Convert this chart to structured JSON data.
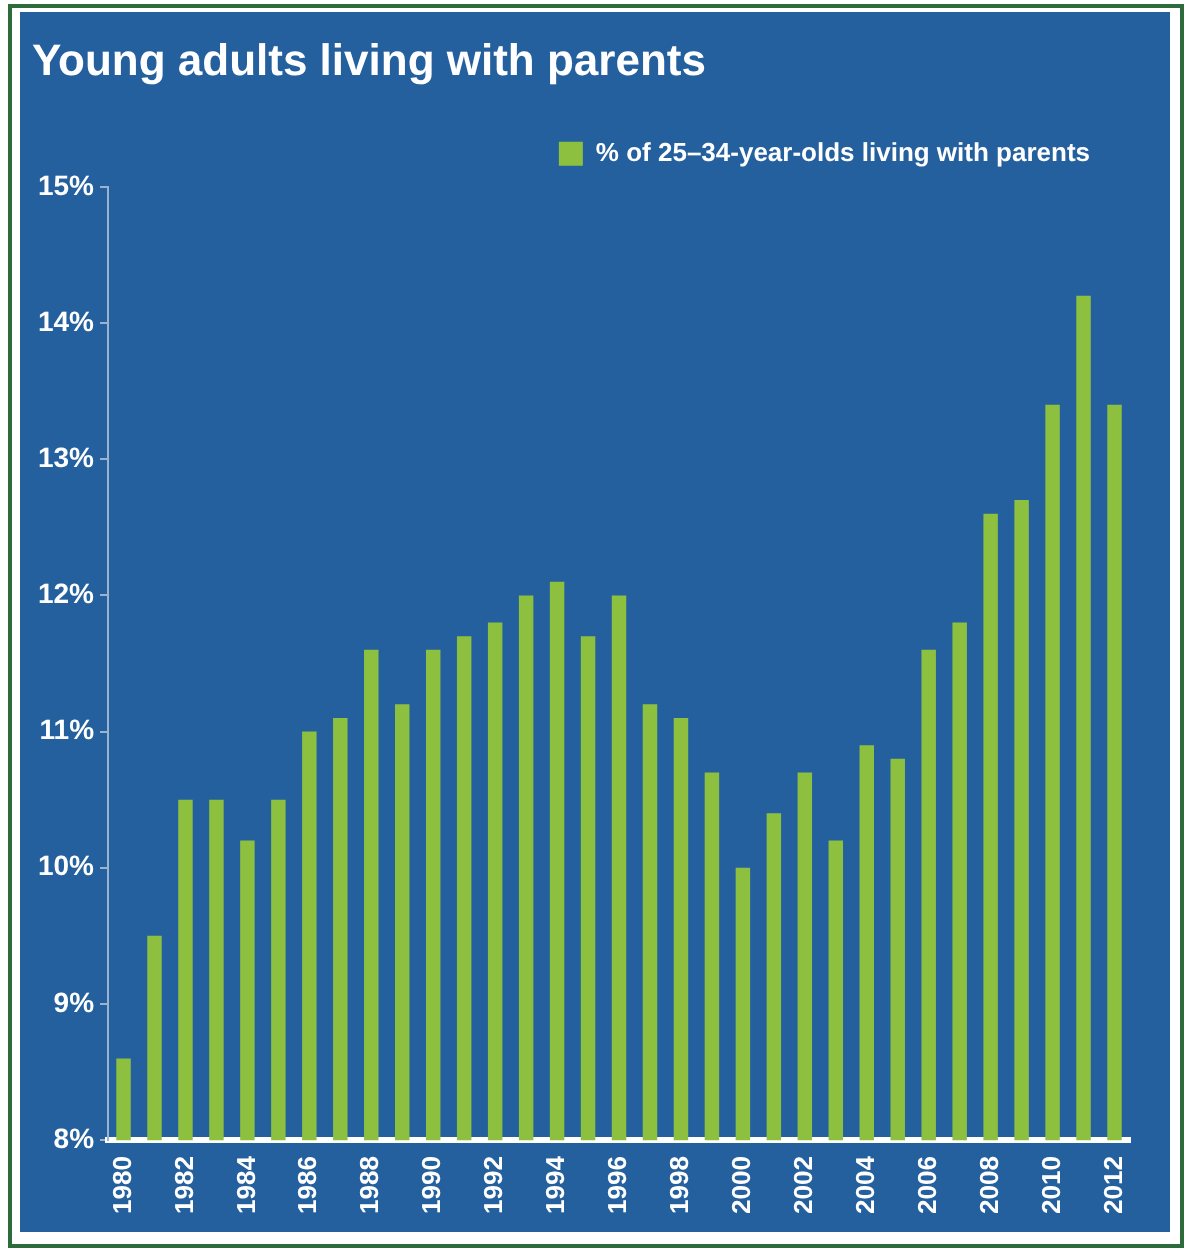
{
  "chart_data": {
    "type": "bar",
    "title": "Young adults living with parents",
    "categories": [
      "1980",
      null,
      "1982",
      null,
      "1984",
      null,
      "1986",
      null,
      "1988",
      null,
      "1990",
      null,
      "1992",
      null,
      "1994",
      null,
      "1996",
      null,
      "1998",
      null,
      "2000",
      null,
      "2002",
      null,
      "2004",
      null,
      "2006",
      null,
      "2008",
      null,
      "2010",
      null,
      "2012"
    ],
    "series": [
      {
        "name": "% of 25–34-year-olds living with parents",
        "color": "#8dc03f",
        "values": [
          8.6,
          9.5,
          10.5,
          10.5,
          10.2,
          10.5,
          11.0,
          11.1,
          11.6,
          11.2,
          11.6,
          11.7,
          11.8,
          12.0,
          12.1,
          11.7,
          12.0,
          11.2,
          11.1,
          10.7,
          10.0,
          10.4,
          10.7,
          10.2,
          10.9,
          10.8,
          11.6,
          11.8,
          12.6,
          12.7,
          13.4,
          14.2,
          13.4
        ]
      }
    ],
    "ylim": [
      8,
      15
    ],
    "yticks": [
      {
        "value": 8,
        "label": "8%"
      },
      {
        "value": 9,
        "label": "9%"
      },
      {
        "value": 10,
        "label": "10%"
      },
      {
        "value": 11,
        "label": "11%"
      },
      {
        "value": 12,
        "label": "12%"
      },
      {
        "value": 13,
        "label": "13%"
      },
      {
        "value": 14,
        "label": "14%"
      },
      {
        "value": 15,
        "label": "15%"
      }
    ],
    "grid": false,
    "legend": "top right"
  }
}
